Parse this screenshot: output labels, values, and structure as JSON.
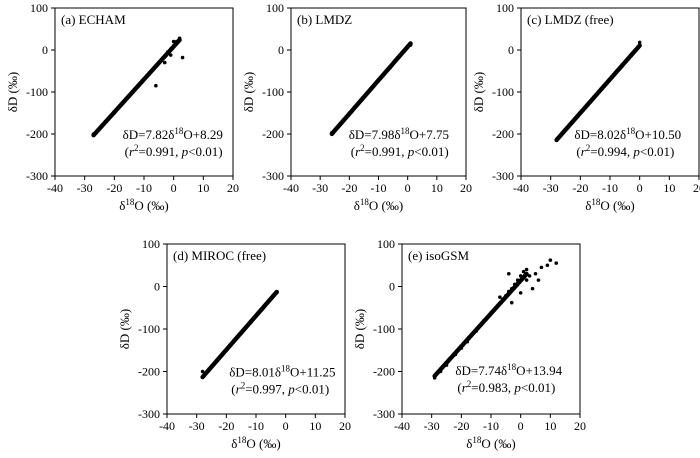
{
  "chart_data": [
    {
      "type": "scatter",
      "title": "(a) ECHAM",
      "xlabel": "δ18O (‰)",
      "ylabel": "δD (‰)",
      "xlim": [
        -40,
        20
      ],
      "ylim": [
        -300,
        100
      ],
      "xticks": [
        -40,
        -30,
        -20,
        -10,
        0,
        10,
        20
      ],
      "yticks": [
        -300,
        -200,
        -100,
        0,
        100
      ],
      "fit": {
        "slope": 7.82,
        "intercept": 8.29
      },
      "equation": "δD=7.82δ18O+8.29",
      "stats": "(r2=0.991, p<0.01)",
      "points": [
        [
          -27,
          -200
        ],
        [
          -25,
          -187
        ],
        [
          -22,
          -165
        ],
        [
          -20,
          -150
        ],
        [
          -18,
          -133
        ],
        [
          -15,
          -110
        ],
        [
          -12,
          -87
        ],
        [
          -10,
          -70
        ],
        [
          -8,
          -55
        ],
        [
          -6,
          -40
        ],
        [
          -5,
          -30
        ],
        [
          -4,
          -22
        ],
        [
          -3,
          -15
        ],
        [
          -2,
          -5
        ],
        [
          -1,
          2
        ],
        [
          0,
          10
        ],
        [
          1,
          20
        ],
        [
          2,
          28
        ],
        [
          3,
          -18
        ],
        [
          -3,
          -30
        ],
        [
          -1,
          -12
        ],
        [
          0,
          20
        ],
        [
          -6,
          -85
        ]
      ]
    },
    {
      "type": "scatter",
      "title": "(b) LMDZ",
      "xlabel": "δ18O (‰)",
      "ylabel": "δD (‰)",
      "xlim": [
        -40,
        20
      ],
      "ylim": [
        -300,
        100
      ],
      "xticks": [
        -40,
        -30,
        -20,
        -10,
        0,
        10,
        20
      ],
      "yticks": [
        -300,
        -200,
        -100,
        0,
        100
      ],
      "fit": {
        "slope": 7.98,
        "intercept": 7.75
      },
      "equation": "δD=7.98δ18O+7.75",
      "stats": "(r2=0.991, p<0.01)",
      "points": [
        [
          -26,
          -197
        ],
        [
          -23,
          -175
        ],
        [
          -20,
          -150
        ],
        [
          -18,
          -135
        ],
        [
          -15,
          -112
        ],
        [
          -12,
          -88
        ],
        [
          -10,
          -72
        ],
        [
          -8,
          -57
        ],
        [
          -6,
          -42
        ],
        [
          -5,
          -33
        ],
        [
          -4,
          -25
        ],
        [
          -3,
          -17
        ],
        [
          -2,
          -8
        ],
        [
          -1,
          0
        ],
        [
          0,
          8
        ],
        [
          1,
          12
        ]
      ]
    },
    {
      "type": "scatter",
      "title": "(c) LMDZ (free)",
      "xlabel": "δ18O (‰)",
      "ylabel": "δD (‰)",
      "xlim": [
        -40,
        20
      ],
      "ylim": [
        -300,
        100
      ],
      "xticks": [
        -40,
        -30,
        -20,
        -10,
        0,
        10,
        20
      ],
      "yticks": [
        -300,
        -200,
        -100,
        0,
        100
      ],
      "fit": {
        "slope": 8.02,
        "intercept": 10.5
      },
      "equation": "δD=8.02δ18O+10.50",
      "stats": "(r2=0.994, p<0.01)",
      "points": [
        [
          -28,
          -215
        ],
        [
          -26,
          -198
        ],
        [
          -23,
          -175
        ],
        [
          -20,
          -150
        ],
        [
          -18,
          -134
        ],
        [
          -15,
          -110
        ],
        [
          -12,
          -86
        ],
        [
          -10,
          -70
        ],
        [
          -8,
          -54
        ],
        [
          -6,
          -38
        ],
        [
          -5,
          -30
        ],
        [
          -4,
          -22
        ],
        [
          -3,
          -14
        ],
        [
          -2,
          -6
        ],
        [
          -1,
          2
        ],
        [
          0,
          18
        ]
      ]
    },
    {
      "type": "scatter",
      "title": "(d) MIROC (free)",
      "xlabel": "δ18O (‰)",
      "ylabel": "δD (‰)",
      "xlim": [
        -40,
        20
      ],
      "ylim": [
        -300,
        100
      ],
      "xticks": [
        -40,
        -30,
        -20,
        -10,
        0,
        10,
        20
      ],
      "yticks": [
        -300,
        -200,
        -100,
        0,
        100
      ],
      "fit": {
        "slope": 8.01,
        "intercept": 11.25
      },
      "equation": "δD=8.01δ18O+11.25",
      "stats": "(r2=0.997, p<0.01)",
      "points": [
        [
          -28,
          -200
        ],
        [
          -25,
          -189
        ],
        [
          -22,
          -165
        ],
        [
          -20,
          -150
        ],
        [
          -18,
          -133
        ],
        [
          -15,
          -110
        ],
        [
          -13,
          -93
        ],
        [
          -10,
          -70
        ],
        [
          -8,
          -54
        ],
        [
          -6,
          -37
        ],
        [
          -5,
          -29
        ],
        [
          -4,
          -21
        ],
        [
          -3,
          -14
        ]
      ]
    },
    {
      "type": "scatter",
      "title": "(e) isoGSM",
      "xlabel": "δ18O (‰)",
      "ylabel": "δD (‰)",
      "xlim": [
        -40,
        20
      ],
      "ylim": [
        -300,
        100
      ],
      "xticks": [
        -40,
        -30,
        -20,
        -10,
        0,
        10,
        20
      ],
      "yticks": [
        -300,
        -200,
        -100,
        0,
        100
      ],
      "fit": {
        "slope": 7.74,
        "intercept": 13.94
      },
      "equation": "δD=7.74δ18O+13.94",
      "stats": "(r2=0.983, p<0.01)",
      "points": [
        [
          -29,
          -215
        ],
        [
          -27,
          -200
        ],
        [
          -25,
          -185
        ],
        [
          -22,
          -160
        ],
        [
          -20,
          -145
        ],
        [
          -18,
          -130
        ],
        [
          -15,
          -105
        ],
        [
          -12,
          -80
        ],
        [
          -10,
          -62
        ],
        [
          -8,
          -48
        ],
        [
          -6,
          -30
        ],
        [
          -5,
          -22
        ],
        [
          -4,
          -12
        ],
        [
          -3,
          -5
        ],
        [
          -2,
          5
        ],
        [
          -1,
          15
        ],
        [
          0,
          25
        ],
        [
          1,
          35
        ],
        [
          2,
          40
        ],
        [
          3,
          25
        ],
        [
          5,
          30
        ],
        [
          7,
          45
        ],
        [
          9,
          50
        ],
        [
          10,
          62
        ],
        [
          12,
          55
        ],
        [
          -7,
          -25
        ],
        [
          -3,
          -38
        ],
        [
          0,
          -15
        ],
        [
          2,
          15
        ],
        [
          -14,
          -95
        ],
        [
          -4,
          30
        ],
        [
          4,
          -5
        ],
        [
          6,
          15
        ]
      ]
    }
  ]
}
